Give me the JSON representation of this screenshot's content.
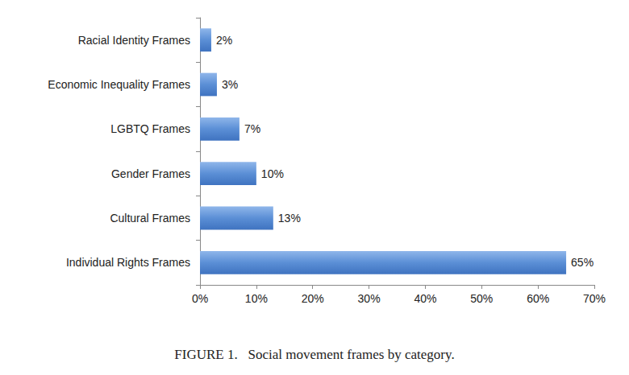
{
  "chart_data": {
    "type": "bar",
    "orientation": "horizontal",
    "title": "FIGURE 1.   Social movement frames by category.",
    "categories": [
      "Individual Rights Frames",
      "Cultural Frames",
      "Gender Frames",
      "LGBTQ Frames",
      "Economic Inequality Frames",
      "Racial Identity Frames"
    ],
    "values": [
      65,
      13,
      10,
      7,
      3,
      2
    ],
    "value_labels": [
      "65%",
      "13%",
      "10%",
      "7%",
      "3%",
      "2%"
    ],
    "data_labels": true,
    "color": "#5b8fd6",
    "xlim": [
      0,
      70
    ],
    "xticks": [
      {
        "value": 0,
        "label": "0%"
      },
      {
        "value": 10,
        "label": "10%"
      },
      {
        "value": 20,
        "label": "20%"
      },
      {
        "value": 30,
        "label": "30%"
      },
      {
        "value": 40,
        "label": "40%"
      },
      {
        "value": 50,
        "label": "50%"
      },
      {
        "value": 60,
        "label": "60%"
      },
      {
        "value": 70,
        "label": "70%"
      }
    ],
    "grid": false
  }
}
